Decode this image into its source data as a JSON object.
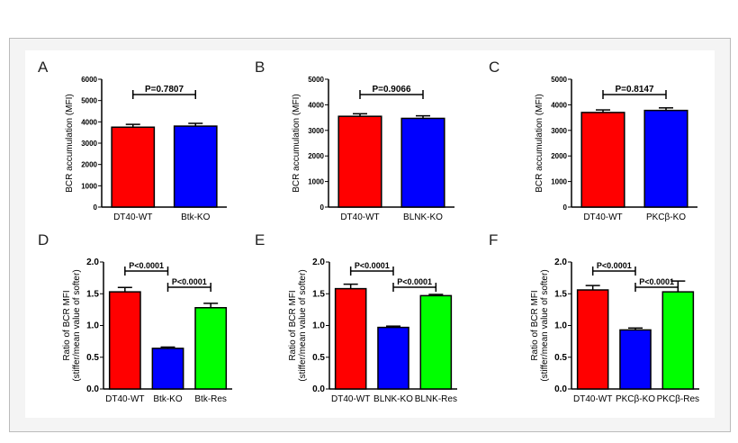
{
  "chart_data": [
    {
      "panel": "A",
      "type": "bar",
      "ylabel": "BCR accumulation (MFI)",
      "ylim": [
        0,
        6000
      ],
      "ticks": [
        0,
        1000,
        2000,
        3000,
        4000,
        5000,
        6000
      ],
      "categories": [
        "DT40-WT",
        "Btk-KO"
      ],
      "values": [
        3750,
        3800
      ],
      "errors": [
        130,
        130
      ],
      "colors": [
        "#ff0000",
        "#0000ff"
      ],
      "comparisons": [
        {
          "from": 0,
          "to": 1,
          "label": "P=0.7807"
        }
      ]
    },
    {
      "panel": "B",
      "type": "bar",
      "ylabel": "BCR accumulation (MFI)",
      "ylim": [
        0,
        5000
      ],
      "ticks": [
        0,
        1000,
        2000,
        3000,
        4000,
        5000
      ],
      "categories": [
        "DT40-WT",
        "BLNK-KO"
      ],
      "values": [
        3550,
        3470
      ],
      "errors": [
        100,
        100
      ],
      "colors": [
        "#ff0000",
        "#0000ff"
      ],
      "comparisons": [
        {
          "from": 0,
          "to": 1,
          "label": "P=0.9066"
        }
      ]
    },
    {
      "panel": "C",
      "type": "bar",
      "ylabel": "BCR accumulation (MFI)",
      "ylim": [
        0,
        5000
      ],
      "ticks": [
        0,
        1000,
        2000,
        3000,
        4000,
        5000
      ],
      "categories": [
        "DT40-WT",
        "PKCβ-KO"
      ],
      "values": [
        3700,
        3780
      ],
      "errors": [
        100,
        100
      ],
      "colors": [
        "#ff0000",
        "#0000ff"
      ],
      "comparisons": [
        {
          "from": 0,
          "to": 1,
          "label": "P=0.8147"
        }
      ]
    },
    {
      "panel": "D",
      "type": "bar",
      "ylabel": "Ratio of BCR MFI",
      "ylabel2": "(stiffer/mean value of softer)",
      "ylim": [
        0,
        2.0
      ],
      "ticks": [
        "0.0",
        "0.5",
        "1.0",
        "1.5",
        "2.0"
      ],
      "categories": [
        "DT40-WT",
        "Btk-KO",
        "Btk-Res"
      ],
      "values": [
        1.53,
        0.64,
        1.28
      ],
      "errors": [
        0.07,
        0.02,
        0.07
      ],
      "colors": [
        "#ff0000",
        "#0000ff",
        "#00ff00"
      ],
      "comparisons": [
        {
          "from": 0,
          "to": 1,
          "label": "P<0.0001"
        },
        {
          "from": 1,
          "to": 2,
          "label": "P<0.0001"
        }
      ]
    },
    {
      "panel": "E",
      "type": "bar",
      "ylabel": "Ratio of BCR MFI",
      "ylabel2": "(stiffer/mean value of softer)",
      "ylim": [
        0,
        2.0
      ],
      "ticks": [
        "0.0",
        "0.5",
        "1.0",
        "1.5",
        "2.0"
      ],
      "categories": [
        "DT40-WT",
        "BLNK-KO",
        "BLNK-Res"
      ],
      "values": [
        1.58,
        0.97,
        1.47
      ],
      "errors": [
        0.07,
        0.02,
        0.02
      ],
      "colors": [
        "#ff0000",
        "#0000ff",
        "#00ff00"
      ],
      "comparisons": [
        {
          "from": 0,
          "to": 1,
          "label": "P<0.0001"
        },
        {
          "from": 1,
          "to": 2,
          "label": "P<0.0001"
        }
      ]
    },
    {
      "panel": "F",
      "type": "bar",
      "ylabel": "Ratio of BCR MFI",
      "ylabel2": "(stiffer/mean value of softer)",
      "ylim": [
        0,
        2.0
      ],
      "ticks": [
        "0.0",
        "0.5",
        "1.0",
        "1.5",
        "2.0"
      ],
      "categories": [
        "DT40-WT",
        "PKCβ-KO",
        "PKCβ-Res"
      ],
      "values": [
        1.56,
        0.93,
        1.53
      ],
      "errors": [
        0.07,
        0.03,
        0.17
      ],
      "colors": [
        "#ff0000",
        "#0000ff",
        "#00ff00"
      ],
      "comparisons": [
        {
          "from": 0,
          "to": 1,
          "label": "P<0.0001"
        },
        {
          "from": 1,
          "to": 2,
          "label": "P<0.0001"
        }
      ]
    }
  ]
}
